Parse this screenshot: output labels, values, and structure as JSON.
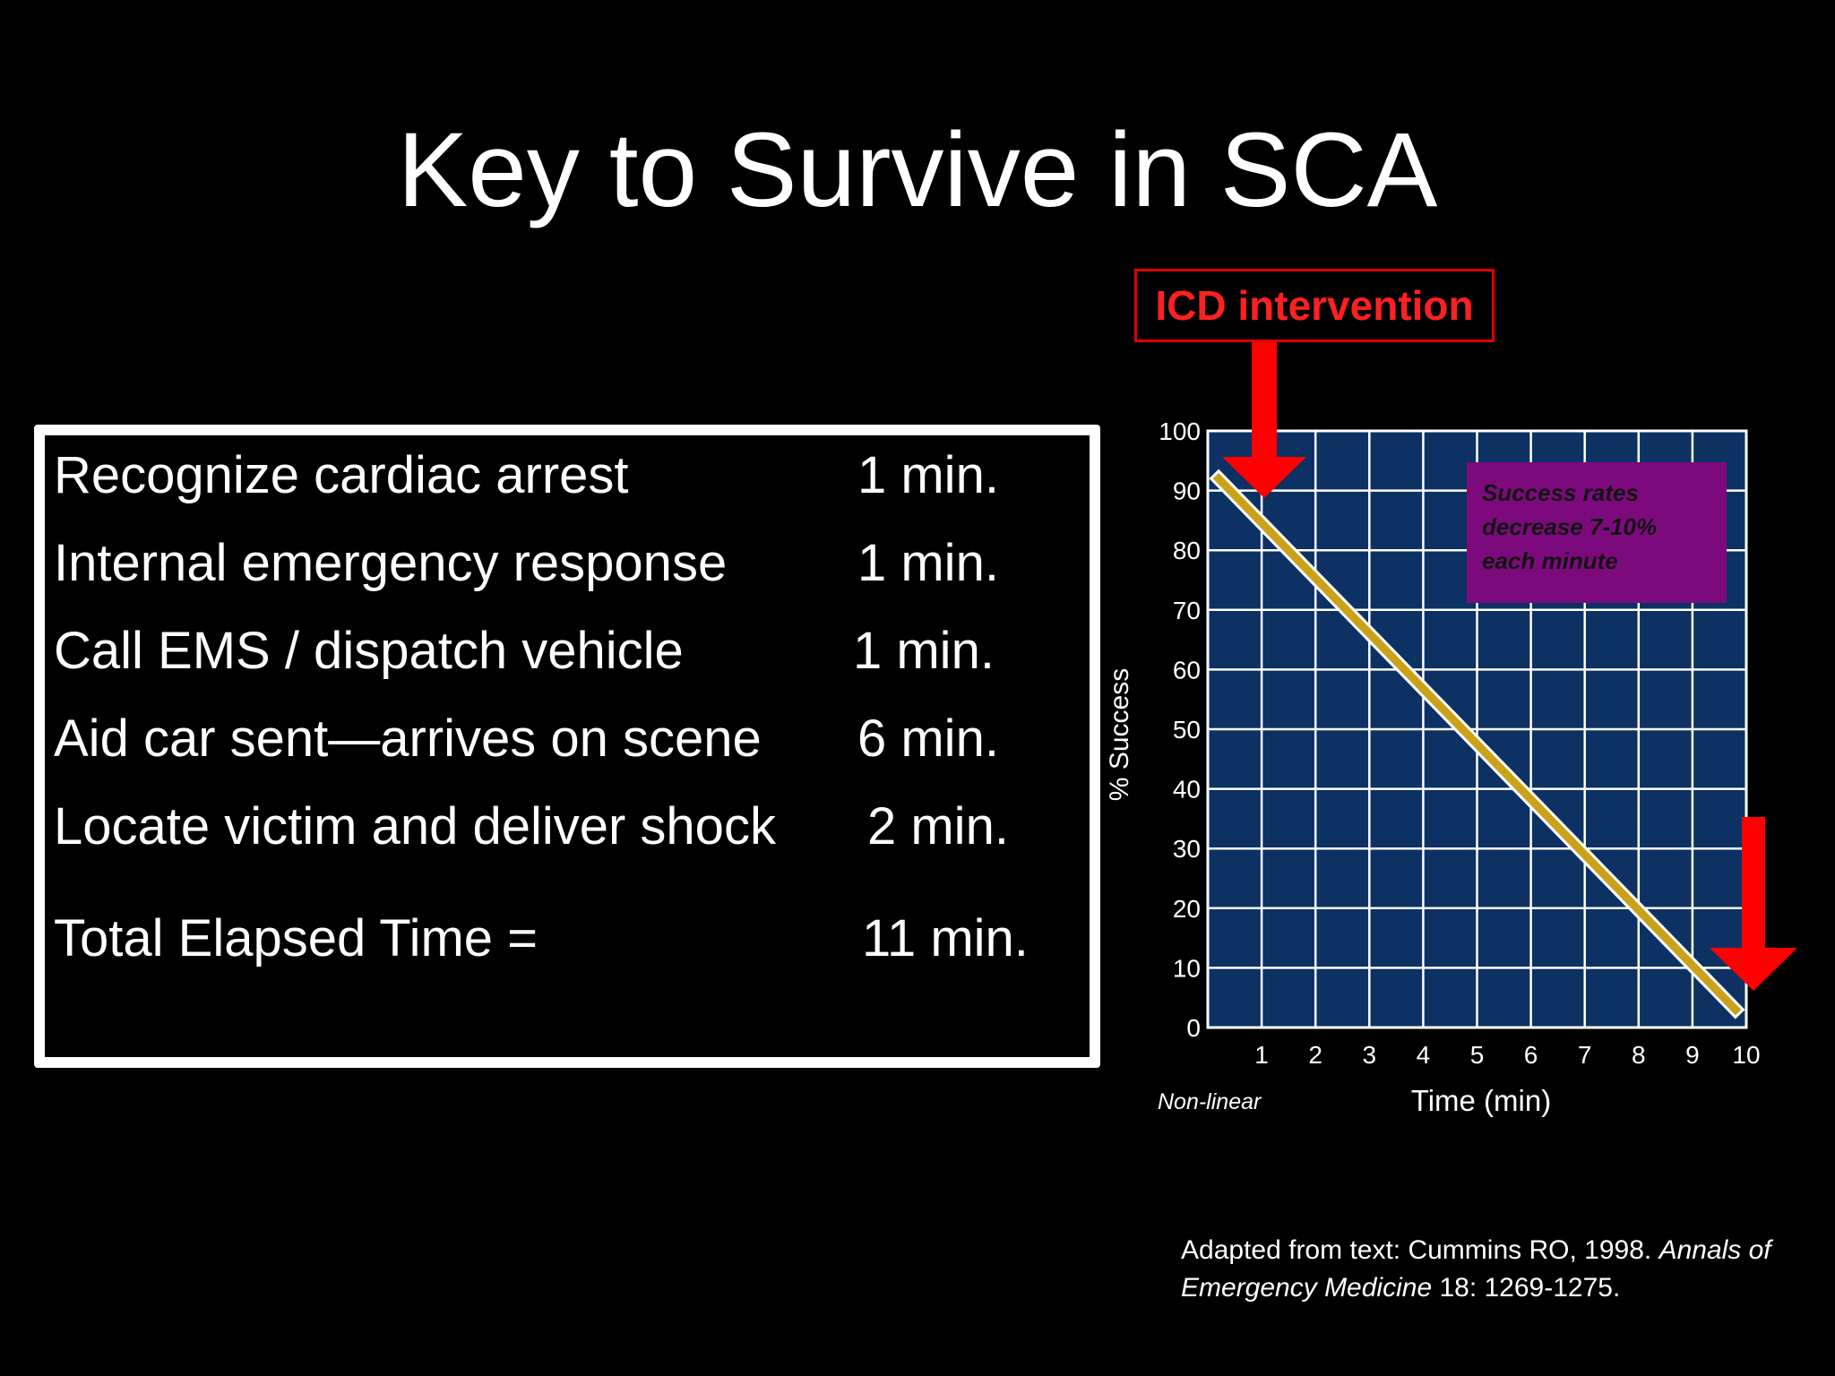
{
  "slide": {
    "title": "Key to Survive in SCA"
  },
  "timing": {
    "rows": [
      {
        "label": "Recognize cardiac arrest",
        "value": "1 min."
      },
      {
        "label": "Internal emergency response",
        "value": "1 min."
      },
      {
        "label": "Call EMS / dispatch vehicle",
        "value": "1 min."
      },
      {
        "label": "Aid car sent—arrives on scene",
        "value": "6 min."
      },
      {
        "label": "Locate victim and deliver shock",
        "value": "2 min."
      }
    ],
    "total_label": "Total Elapsed Time =",
    "total_value": "11 min."
  },
  "icd_label": "ICD intervention",
  "chart_data": {
    "type": "line",
    "title": "",
    "xlabel": "Time (min)",
    "ylabel": "% Success",
    "x_note": "Non-linear",
    "xlim": [
      0,
      10
    ],
    "ylim": [
      0,
      100
    ],
    "x_ticks": [
      "1",
      "2",
      "3",
      "4",
      "5",
      "6",
      "7",
      "8",
      "9",
      "10"
    ],
    "y_ticks": [
      "0",
      "10",
      "20",
      "30",
      "40",
      "50",
      "60",
      "70",
      "80",
      "90",
      "100"
    ],
    "grid": true,
    "series": [
      {
        "x": [
          0.2,
          9.8
        ],
        "y": [
          92,
          3
        ]
      }
    ],
    "annotation": [
      "Success rates",
      "decrease 7-10%",
      "each minute"
    ],
    "colors": {
      "plot_bg": "#0d3163",
      "grid": "#ffffff",
      "line": "#c9a21a",
      "arrow": "#ff0000",
      "annotation_bg": "#7d0a7d",
      "annotation_text": "#111111"
    }
  },
  "citation": {
    "prefix": "Adapted from text: Cummins RO, 1998. ",
    "journal_a": "Annals of",
    "journal_b": "Emergency Medicine",
    "suffix": " 18: 1269-1275."
  }
}
